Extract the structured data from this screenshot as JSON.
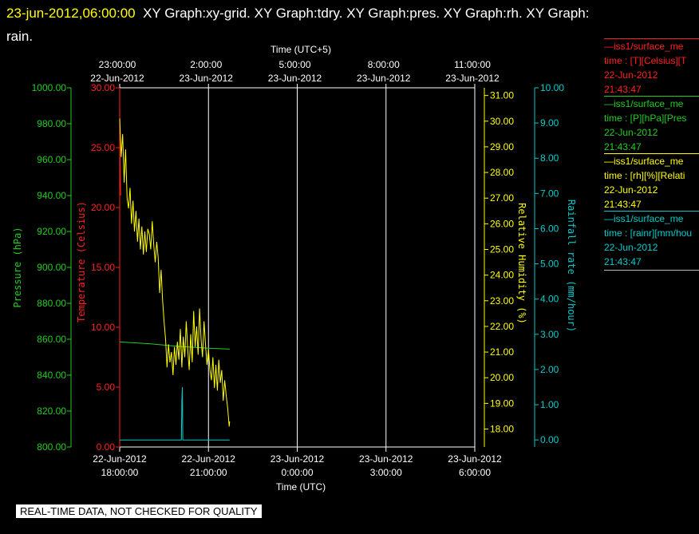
{
  "title": {
    "timestamp": "23-jun-2012,06:00:00",
    "graphs": "XY Graph:xy-grid.  XY Graph:tdry.  XY Graph:pres.  XY Graph:rh.  XY Graph:",
    "line2": "rain."
  },
  "footer": "REAL-TIME DATA, NOT CHECKED FOR QUALITY",
  "colors": {
    "temperature": "#ff2020",
    "pressure": "#22cc22",
    "humidity": "#ffff00",
    "rain": "#00cccc",
    "grid": "#ffffff"
  },
  "legend": [
    {
      "name": "—iss1/surface_me",
      "var": "time : [T][Celsius][T",
      "date": "22-Jun-2012",
      "time": "21:43:47",
      "color": "#ff2020"
    },
    {
      "name": "—iss1/surface_me",
      "var": "time : [P][hPa][Pres",
      "date": "22-Jun-2012",
      "time": "21:43:47",
      "color": "#22cc22"
    },
    {
      "name": "—iss1/surface_me",
      "var": "time : [rh][%][Relati",
      "date": "22-Jun-2012",
      "time": "21:43:47",
      "color": "#ffff00"
    },
    {
      "name": "—iss1/surface_me",
      "var": "time : [rainr][mm/hou",
      "date": "22-Jun-2012",
      "time": "21:43:47",
      "color": "#00cccc"
    }
  ],
  "chart_data": {
    "type": "line",
    "x_axis_bottom": {
      "label": "Time (UTC)",
      "ticks": [
        {
          "date": "22-Jun-2012",
          "time": "18:00:00"
        },
        {
          "date": "22-Jun-2012",
          "time": "21:00:00"
        },
        {
          "date": "23-Jun-2012",
          "time": "0:00:00"
        },
        {
          "date": "23-Jun-2012",
          "time": "3:00:00"
        },
        {
          "date": "23-Jun-2012",
          "time": "6:00:00"
        }
      ],
      "range": [
        "2012-06-22T18:00:00",
        "2012-06-23T06:00:00"
      ]
    },
    "x_axis_top": {
      "label": "Time (UTC+5)",
      "ticks": [
        {
          "time": "23:00:00",
          "date": "22-Jun-2012"
        },
        {
          "time": "2:00:00",
          "date": "23-Jun-2012"
        },
        {
          "time": "5:00:00",
          "date": "23-Jun-2012"
        },
        {
          "time": "8:00:00",
          "date": "23-Jun-2012"
        },
        {
          "time": "11:00:00",
          "date": "23-Jun-2012"
        }
      ]
    },
    "axes": {
      "pressure": {
        "label": "Pressure (hPa)",
        "range": [
          800,
          1000
        ],
        "ticks": [
          "800.00",
          "820.00",
          "840.00",
          "860.00",
          "880.00",
          "900.00",
          "920.00",
          "940.00",
          "960.00",
          "980.00",
          "1000.00"
        ]
      },
      "temperature": {
        "label": "Temperature (Celsius)",
        "range": [
          0,
          30
        ],
        "ticks": [
          "0.00",
          "5.00",
          "10.00",
          "15.00",
          "20.00",
          "25.00",
          "30.00"
        ]
      },
      "humidity": {
        "label": "Relative Humidity (%)",
        "range": [
          17.3,
          31.3
        ],
        "ticks": [
          "18.00",
          "19.00",
          "20.00",
          "21.00",
          "22.00",
          "23.00",
          "24.00",
          "25.00",
          "26.00",
          "27.00",
          "28.00",
          "29.00",
          "30.00",
          "31.00"
        ]
      },
      "rain": {
        "label": "Rainfall rate (mm/hour)",
        "range": [
          -0.2,
          10.0
        ],
        "ticks": [
          "0.00",
          "1.00",
          "2.00",
          "3.00",
          "4.00",
          "5.00",
          "6.00",
          "7.00",
          "8.00",
          "9.00",
          "10.00"
        ]
      }
    },
    "grid": true,
    "series": [
      {
        "name": "T",
        "axis": "temperature",
        "color": "#ff2020",
        "x": [
          "2012-06-22T18:00:00",
          "2012-06-22T18:01:00",
          "2012-06-22T18:02:00"
        ],
        "y": [
          28.5,
          23.5,
          21.0
        ]
      },
      {
        "name": "P",
        "axis": "pressure",
        "color": "#22cc22",
        "x": [
          "2012-06-22T18:00:00",
          "2012-06-22T19:00:00",
          "2012-06-22T20:00:00",
          "2012-06-22T21:00:00",
          "2012-06-22T21:43:00"
        ],
        "y": [
          858.5,
          857.5,
          856.0,
          855.0,
          854.5
        ]
      },
      {
        "name": "rh",
        "axis": "humidity",
        "color": "#ffff00",
        "x": [
          "2012-06-22T18:00:00",
          "2012-06-22T18:03:00",
          "2012-06-22T18:06:00",
          "2012-06-22T18:09:00",
          "2012-06-22T18:12:00",
          "2012-06-22T18:15:00",
          "2012-06-22T18:18:00",
          "2012-06-22T18:21:00",
          "2012-06-22T18:24:00",
          "2012-06-22T18:27:00",
          "2012-06-22T18:30:00",
          "2012-06-22T18:33:00",
          "2012-06-22T18:36:00",
          "2012-06-22T18:39:00",
          "2012-06-22T18:42:00",
          "2012-06-22T18:45:00",
          "2012-06-22T18:48:00",
          "2012-06-22T18:51:00",
          "2012-06-22T18:54:00",
          "2012-06-22T18:57:00",
          "2012-06-22T19:00:00",
          "2012-06-22T19:03:00",
          "2012-06-22T19:06:00",
          "2012-06-22T19:09:00",
          "2012-06-22T19:12:00",
          "2012-06-22T19:15:00",
          "2012-06-22T19:18:00",
          "2012-06-22T19:21:00",
          "2012-06-22T19:24:00",
          "2012-06-22T19:27:00",
          "2012-06-22T19:30:00",
          "2012-06-22T19:33:00",
          "2012-06-22T19:36:00",
          "2012-06-22T19:39:00",
          "2012-06-22T19:42:00",
          "2012-06-22T19:45:00",
          "2012-06-22T19:48:00",
          "2012-06-22T19:51:00",
          "2012-06-22T19:54:00",
          "2012-06-22T19:57:00",
          "2012-06-22T20:00:00",
          "2012-06-22T20:03:00",
          "2012-06-22T20:06:00",
          "2012-06-22T20:09:00",
          "2012-06-22T20:12:00",
          "2012-06-22T20:15:00",
          "2012-06-22T20:18:00",
          "2012-06-22T20:21:00",
          "2012-06-22T20:24:00",
          "2012-06-22T20:27:00",
          "2012-06-22T20:30:00",
          "2012-06-22T20:33:00",
          "2012-06-22T20:36:00",
          "2012-06-22T20:39:00",
          "2012-06-22T20:42:00",
          "2012-06-22T20:45:00",
          "2012-06-22T20:48:00",
          "2012-06-22T20:51:00",
          "2012-06-22T20:54:00",
          "2012-06-22T20:57:00",
          "2012-06-22T21:00:00",
          "2012-06-22T21:03:00",
          "2012-06-22T21:06:00",
          "2012-06-22T21:09:00",
          "2012-06-22T21:12:00",
          "2012-06-22T21:15:00",
          "2012-06-22T21:18:00",
          "2012-06-22T21:21:00",
          "2012-06-22T21:24:00",
          "2012-06-22T21:27:00",
          "2012-06-22T21:30:00",
          "2012-06-22T21:33:00",
          "2012-06-22T21:36:00",
          "2012-06-22T21:39:00",
          "2012-06-22T21:42:00",
          "2012-06-22T21:43:00"
        ],
        "y": [
          30.1,
          28.6,
          29.5,
          27.6,
          28.9,
          27.0,
          26.6,
          27.4,
          26.0,
          26.9,
          25.7,
          26.5,
          25.3,
          26.2,
          25.0,
          25.9,
          24.8,
          25.7,
          24.9,
          25.8,
          25.6,
          25.0,
          26.1,
          25.2,
          24.5,
          25.3,
          24.7,
          23.3,
          24.2,
          23.0,
          22.2,
          21.5,
          20.4,
          21.3,
          20.6,
          21.0,
          20.1,
          21.2,
          20.5,
          21.4,
          20.7,
          21.9,
          20.4,
          21.6,
          20.8,
          22.2,
          21.1,
          20.3,
          21.7,
          20.6,
          22.6,
          21.2,
          22.0,
          20.9,
          22.7,
          21.5,
          20.8,
          22.2,
          21.3,
          20.5,
          21.1,
          20.3,
          19.9,
          20.8,
          19.6,
          20.5,
          19.5,
          20.7,
          19.8,
          20.3,
          19.1,
          19.9,
          19.3,
          18.8,
          18.1,
          18.3
        ]
      },
      {
        "name": "rainr",
        "axis": "rain",
        "color": "#00cccc",
        "x": [
          "2012-06-22T18:00:00",
          "2012-06-22T19:35:00",
          "2012-06-22T20:05:00",
          "2012-06-22T20:06:00",
          "2012-06-22T20:07:00",
          "2012-06-22T20:08:00",
          "2012-06-22T21:43:00"
        ],
        "y": [
          0.0,
          0.0,
          0.0,
          1.1,
          1.5,
          0.0,
          0.0
        ]
      }
    ]
  }
}
